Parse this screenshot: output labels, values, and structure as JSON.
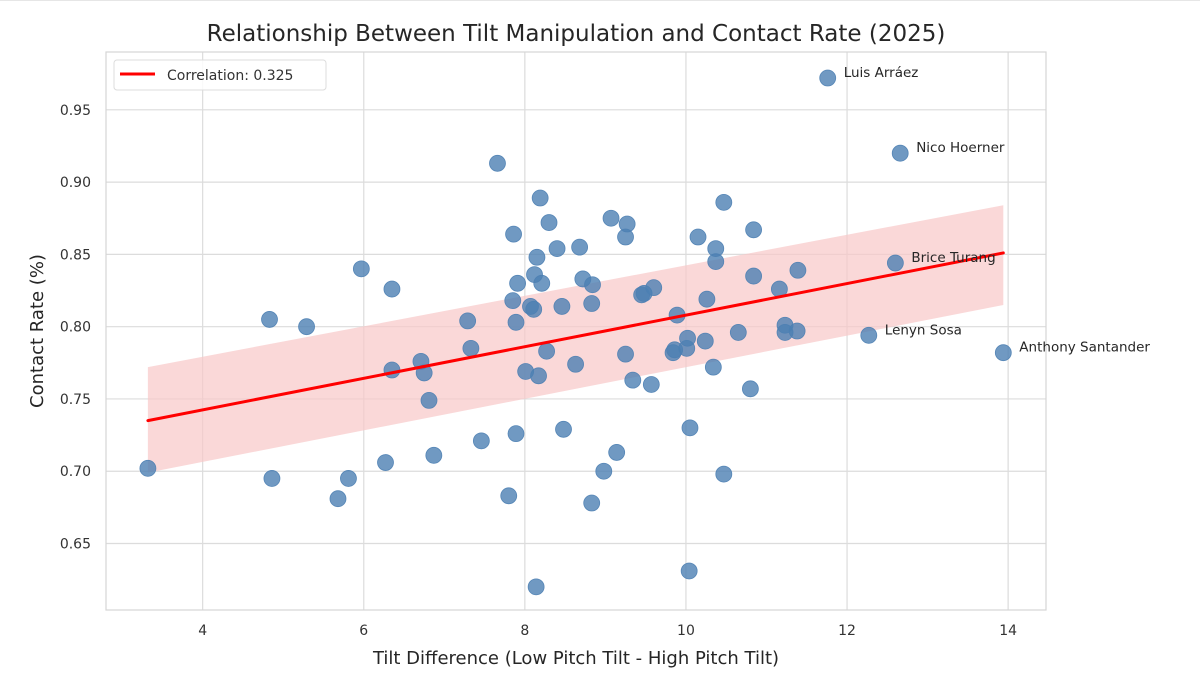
{
  "chart_data": {
    "type": "scatter",
    "title": "Relationship Between Tilt Manipulation and Contact Rate (2025)",
    "xlabel": "Tilt Difference (Low Pitch Tilt - High Pitch Tilt)",
    "ylabel": "Contact Rate (%)",
    "xlim": [
      2.8,
      14.47
    ],
    "ylim": [
      0.604,
      0.99
    ],
    "xticks": [
      4,
      6,
      8,
      10,
      12,
      14
    ],
    "xtick_labels": [
      "4",
      "6",
      "8",
      "10",
      "12",
      "14"
    ],
    "yticks": [
      0.65,
      0.7,
      0.75,
      0.8,
      0.85,
      0.9,
      0.95
    ],
    "ytick_labels": [
      "0.65",
      "0.70",
      "0.75",
      "0.80",
      "0.85",
      "0.90",
      "0.95"
    ],
    "grid": true,
    "legend": {
      "placement": "top-left",
      "entries": [
        {
          "label": "Correlation: 0.325",
          "color": "#ff0000"
        }
      ]
    },
    "colors": {
      "points": "#4c7fb3",
      "regression_line": "#ff0000",
      "confidence_band": "#f8c7c7"
    },
    "regression": {
      "x": [
        3.32,
        13.94
      ],
      "y": [
        0.735,
        0.851
      ],
      "band_upper": [
        0.772,
        0.884
      ],
      "band_lower": [
        0.699,
        0.815
      ]
    },
    "points": [
      {
        "x": 3.32,
        "y": 0.702
      },
      {
        "x": 4.83,
        "y": 0.805
      },
      {
        "x": 5.29,
        "y": 0.8
      },
      {
        "x": 5.97,
        "y": 0.84
      },
      {
        "x": 6.35,
        "y": 0.826
      },
      {
        "x": 4.86,
        "y": 0.695
      },
      {
        "x": 5.81,
        "y": 0.695
      },
      {
        "x": 5.68,
        "y": 0.681
      },
      {
        "x": 6.27,
        "y": 0.706
      },
      {
        "x": 6.87,
        "y": 0.711
      },
      {
        "x": 6.35,
        "y": 0.77
      },
      {
        "x": 6.71,
        "y": 0.776
      },
      {
        "x": 6.75,
        "y": 0.768
      },
      {
        "x": 6.81,
        "y": 0.749
      },
      {
        "x": 7.66,
        "y": 0.913
      },
      {
        "x": 8.19,
        "y": 0.889
      },
      {
        "x": 8.3,
        "y": 0.872
      },
      {
        "x": 7.86,
        "y": 0.864
      },
      {
        "x": 9.07,
        "y": 0.875
      },
      {
        "x": 9.27,
        "y": 0.871
      },
      {
        "x": 9.25,
        "y": 0.862
      },
      {
        "x": 8.4,
        "y": 0.854
      },
      {
        "x": 8.68,
        "y": 0.855
      },
      {
        "x": 8.15,
        "y": 0.848
      },
      {
        "x": 7.91,
        "y": 0.83
      },
      {
        "x": 8.12,
        "y": 0.836
      },
      {
        "x": 8.21,
        "y": 0.83
      },
      {
        "x": 8.72,
        "y": 0.833
      },
      {
        "x": 8.84,
        "y": 0.829
      },
      {
        "x": 7.85,
        "y": 0.818
      },
      {
        "x": 8.07,
        "y": 0.814
      },
      {
        "x": 8.11,
        "y": 0.812
      },
      {
        "x": 8.46,
        "y": 0.814
      },
      {
        "x": 8.83,
        "y": 0.816
      },
      {
        "x": 9.45,
        "y": 0.822
      },
      {
        "x": 9.48,
        "y": 0.823
      },
      {
        "x": 9.6,
        "y": 0.827
      },
      {
        "x": 7.29,
        "y": 0.804
      },
      {
        "x": 7.89,
        "y": 0.803
      },
      {
        "x": 7.33,
        "y": 0.785
      },
      {
        "x": 8.27,
        "y": 0.783
      },
      {
        "x": 8.01,
        "y": 0.769
      },
      {
        "x": 8.17,
        "y": 0.766
      },
      {
        "x": 8.63,
        "y": 0.774
      },
      {
        "x": 9.25,
        "y": 0.781
      },
      {
        "x": 9.34,
        "y": 0.763
      },
      {
        "x": 9.57,
        "y": 0.76
      },
      {
        "x": 9.84,
        "y": 0.782
      },
      {
        "x": 9.86,
        "y": 0.784
      },
      {
        "x": 10.01,
        "y": 0.785
      },
      {
        "x": 10.02,
        "y": 0.792
      },
      {
        "x": 7.46,
        "y": 0.721
      },
      {
        "x": 7.89,
        "y": 0.726
      },
      {
        "x": 8.48,
        "y": 0.729
      },
      {
        "x": 9.14,
        "y": 0.713
      },
      {
        "x": 8.98,
        "y": 0.7
      },
      {
        "x": 7.8,
        "y": 0.683
      },
      {
        "x": 8.83,
        "y": 0.678
      },
      {
        "x": 10.05,
        "y": 0.73
      },
      {
        "x": 8.14,
        "y": 0.62
      },
      {
        "x": 10.04,
        "y": 0.631
      },
      {
        "x": 10.47,
        "y": 0.698
      },
      {
        "x": 10.47,
        "y": 0.886
      },
      {
        "x": 10.15,
        "y": 0.862
      },
      {
        "x": 10.84,
        "y": 0.867
      },
      {
        "x": 10.37,
        "y": 0.854
      },
      {
        "x": 10.37,
        "y": 0.845
      },
      {
        "x": 10.84,
        "y": 0.835
      },
      {
        "x": 11.39,
        "y": 0.839
      },
      {
        "x": 11.16,
        "y": 0.826
      },
      {
        "x": 10.26,
        "y": 0.819
      },
      {
        "x": 9.89,
        "y": 0.808
      },
      {
        "x": 10.24,
        "y": 0.79
      },
      {
        "x": 10.65,
        "y": 0.796
      },
      {
        "x": 11.23,
        "y": 0.801
      },
      {
        "x": 11.23,
        "y": 0.796
      },
      {
        "x": 11.38,
        "y": 0.797
      },
      {
        "x": 10.34,
        "y": 0.772
      },
      {
        "x": 10.8,
        "y": 0.757
      },
      {
        "x": 11.76,
        "y": 0.972,
        "label": "Luis Arráez"
      },
      {
        "x": 12.66,
        "y": 0.92,
        "label": "Nico Hoerner"
      },
      {
        "x": 12.6,
        "y": 0.844,
        "label": "Brice Turang"
      },
      {
        "x": 12.27,
        "y": 0.794,
        "label": "Lenyn Sosa"
      },
      {
        "x": 13.94,
        "y": 0.782,
        "label": "Anthony Santander"
      }
    ]
  }
}
